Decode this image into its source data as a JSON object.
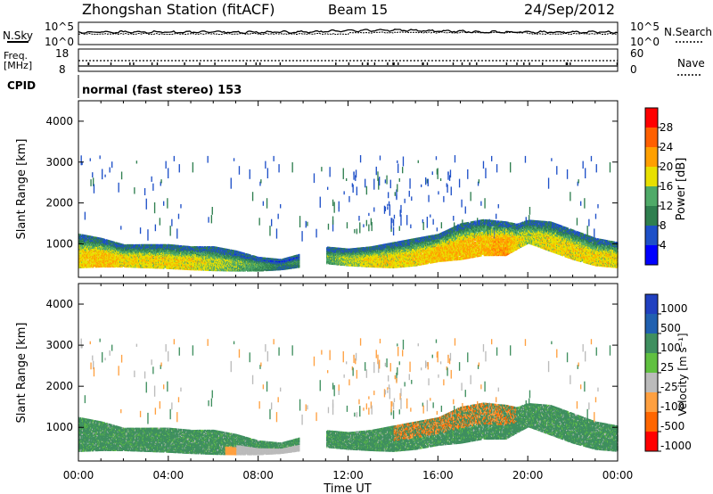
{
  "header": {
    "station": "Zhongshan Station (fitACF)",
    "beam": "Beam 15",
    "date": "24/Sep/2012"
  },
  "summary": {
    "nsky_label": "N.Sky",
    "nsky_ticks": [
      "10^5",
      "10^0"
    ],
    "nsearch_label": "N.Search",
    "nsearch_ticks": [
      "10^5",
      "10^0"
    ],
    "freq_label_1": "Freq.",
    "freq_label_2": "[MHz]",
    "freq_ticks": [
      "18",
      "8"
    ],
    "nave_label": "Nave",
    "nave_ticks": [
      "60",
      "0"
    ],
    "cpid_label": "CPID",
    "cpid_value": "normal (fast stereo) 153"
  },
  "colors": {
    "power_scale": [
      "#0000ff",
      "#1e50c8",
      "#2f7f4f",
      "#4faa68",
      "#e8e000",
      "#ffa000",
      "#ff6000",
      "#ff0000"
    ],
    "velocity_scale": [
      "#ff0000",
      "#ff6600",
      "#ffa040",
      "#bbbbbb",
      "#60c040",
      "#3f8f5f",
      "#2060b0",
      "#2040c0"
    ],
    "ground_scatter": "#bbbbbb"
  },
  "chart_data": [
    {
      "type": "heatmap",
      "panel": "power",
      "ylabel": "Slant Range [km]",
      "ylim": [
        180,
        4500
      ],
      "yticks": [
        "1000",
        "2000",
        "3000",
        "4000"
      ],
      "xlim": [
        0,
        24
      ],
      "colorbar": {
        "label": "Power [dB]",
        "ticks": [
          "28",
          "24",
          "20",
          "16",
          "12",
          "8",
          "4"
        ],
        "range": [
          0,
          32
        ]
      },
      "scatter_band_km": [
        {
          "t": 0.0,
          "lo": 400,
          "hi": 1200,
          "val": 22
        },
        {
          "t": 1.0,
          "lo": 420,
          "hi": 1100,
          "val": 24
        },
        {
          "t": 2.0,
          "lo": 420,
          "hi": 950,
          "val": 22
        },
        {
          "t": 3.0,
          "lo": 400,
          "hi": 950,
          "val": 22
        },
        {
          "t": 4.0,
          "lo": 380,
          "hi": 950,
          "val": 22
        },
        {
          "t": 5.0,
          "lo": 350,
          "hi": 900,
          "val": 22
        },
        {
          "t": 6.0,
          "lo": 330,
          "hi": 900,
          "val": 20
        },
        {
          "t": 7.0,
          "lo": 320,
          "hi": 800,
          "val": 18
        },
        {
          "t": 8.0,
          "lo": 320,
          "hi": 650,
          "val": 16
        },
        {
          "t": 9.0,
          "lo": 350,
          "hi": 600,
          "val": 12
        },
        {
          "t": 11.0,
          "lo": 500,
          "hi": 900,
          "val": 16
        },
        {
          "t": 12.0,
          "lo": 450,
          "hi": 850,
          "val": 20
        },
        {
          "t": 13.0,
          "lo": 420,
          "hi": 900,
          "val": 22
        },
        {
          "t": 14.0,
          "lo": 400,
          "hi": 1000,
          "val": 22
        },
        {
          "t": 15.0,
          "lo": 450,
          "hi": 1100,
          "val": 22
        },
        {
          "t": 16.0,
          "lo": 550,
          "hi": 1200,
          "val": 24
        },
        {
          "t": 17.0,
          "lo": 600,
          "hi": 1450,
          "val": 24
        },
        {
          "t": 18.0,
          "lo": 700,
          "hi": 1550,
          "val": 24
        },
        {
          "t": 19.0,
          "lo": 700,
          "hi": 1500,
          "val": 26
        },
        {
          "t": 19.5,
          "lo": 850,
          "hi": 1450,
          "val": 22
        },
        {
          "t": 20.0,
          "lo": 1000,
          "hi": 1550,
          "val": 20
        },
        {
          "t": 21.0,
          "lo": 800,
          "hi": 1500,
          "val": 22
        },
        {
          "t": 22.0,
          "lo": 600,
          "hi": 1300,
          "val": 22
        },
        {
          "t": 23.0,
          "lo": 450,
          "hi": 1100,
          "val": 22
        },
        {
          "t": 24.0,
          "lo": 400,
          "hi": 1000,
          "val": 22
        }
      ]
    },
    {
      "type": "heatmap",
      "panel": "velocity",
      "ylabel": "Slant Range [km]",
      "ylim": [
        180,
        4500
      ],
      "yticks": [
        "1000",
        "2000",
        "3000",
        "4000"
      ],
      "xlabel": "Time UT",
      "xticks": [
        "00:00",
        "04:00",
        "08:00",
        "12:00",
        "16:00",
        "20:00",
        "00:00"
      ],
      "xlim": [
        0,
        24
      ],
      "colorbar": {
        "label": "Velocity [m s⁻¹]",
        "ticks": [
          "1000",
          "500",
          "100",
          "25",
          "-25",
          "-100",
          "-500",
          "-1000"
        ]
      }
    }
  ]
}
